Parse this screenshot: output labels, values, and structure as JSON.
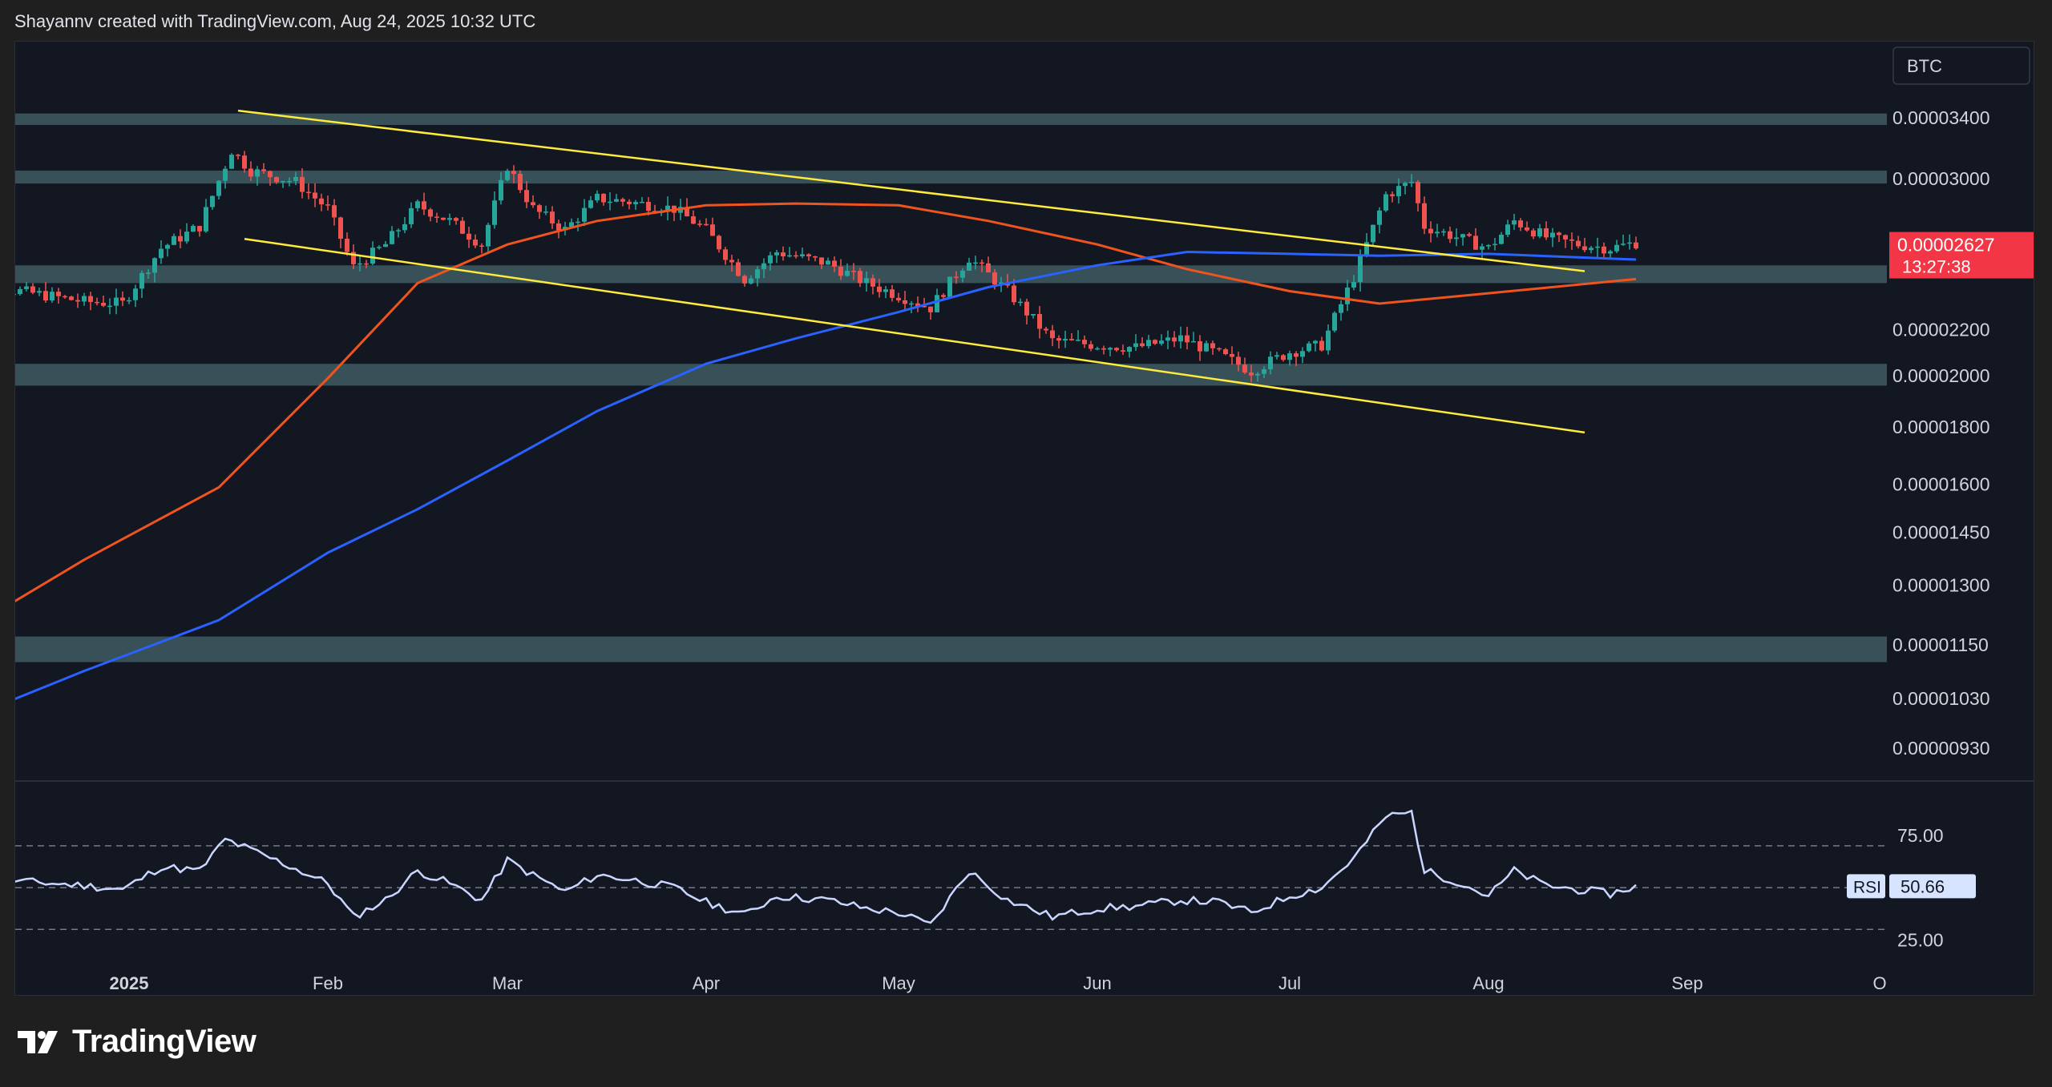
{
  "header": {
    "text": "Shayannv created with TradingView.com, Aug 24, 2025 10:32 UTC"
  },
  "footer": {
    "brand": "TradingView",
    "logo_icon": "tradingview-logo-icon"
  },
  "colors": {
    "background": "#131722",
    "page_bg": "#1f1f1f",
    "grid_zone": "#3f5a62",
    "candle_up": "#26a69a",
    "candle_down": "#ef5350",
    "ma_orange": "#f0541e",
    "ma_blue": "#2962ff",
    "trendline": "#ffeb3b",
    "rsi_line": "#c9d6ff",
    "price_badge": "#f23645",
    "rsi_badge": "#d6e4ff"
  },
  "chart_data": [
    {
      "type": "candlestick",
      "title": "",
      "symbol_button": "BTC",
      "scale": "log",
      "ylim": [
        8.9e-06,
        3.7e-05
      ],
      "x_tick_labels": [
        "2025",
        "Feb",
        "Mar",
        "Apr",
        "May",
        "Jun",
        "Jul",
        "Aug",
        "Sep",
        "O"
      ],
      "x_tick_dates": [
        "2025-01-01",
        "2025-02-01",
        "2025-03-01",
        "2025-04-01",
        "2025-05-01",
        "2025-06-01",
        "2025-07-01",
        "2025-08-01",
        "2025-09-01",
        "2025-10-01"
      ],
      "y_tick_labels": [
        "0.00003400",
        "0.00003000",
        "0.00002200",
        "0.00002000",
        "0.00001800",
        "0.00001600",
        "0.00001450",
        "0.00001300",
        "0.00001150",
        "0.00001030",
        "0.00000930"
      ],
      "y_tick_values": [
        3.4e-05,
        3e-05,
        2.2e-05,
        2e-05,
        1.8e-05,
        1.6e-05,
        1.45e-05,
        1.3e-05,
        1.15e-05,
        1.03e-05,
        9.3e-06
      ],
      "current_price": {
        "value": "0.00002627",
        "countdown": "13:27:38"
      },
      "zones": [
        {
          "from": 3.35e-05,
          "to": 3.43e-05
        },
        {
          "from": 2.97e-05,
          "to": 3.05e-05
        },
        {
          "from": 2.42e-05,
          "to": 2.51e-05
        },
        {
          "from": 1.96e-05,
          "to": 2.05e-05
        },
        {
          "from": 1.11e-05,
          "to": 1.17e-05
        }
      ],
      "trendlines": [
        {
          "from": [
            "2025-01-18",
            3.45e-05
          ],
          "to": [
            "2025-08-16",
            2.48e-05
          ]
        },
        {
          "from": [
            "2025-01-19",
            2.65e-05
          ],
          "to": [
            "2025-08-16",
            1.78e-05
          ]
        }
      ],
      "moving_averages": [
        {
          "color": "#f0541e",
          "points": [
            [
              "2024-12-05",
              1.17e-05
            ],
            [
              "2024-12-25",
              1.37e-05
            ],
            [
              "2025-01-15",
              1.59e-05
            ],
            [
              "2025-02-01",
              1.99e-05
            ],
            [
              "2025-02-15",
              2.42e-05
            ],
            [
              "2025-03-01",
              2.62e-05
            ],
            [
              "2025-03-15",
              2.75e-05
            ],
            [
              "2025-04-01",
              2.84e-05
            ],
            [
              "2025-04-15",
              2.85e-05
            ],
            [
              "2025-05-01",
              2.84e-05
            ],
            [
              "2025-05-15",
              2.75e-05
            ],
            [
              "2025-06-01",
              2.62e-05
            ],
            [
              "2025-06-15",
              2.49e-05
            ],
            [
              "2025-07-01",
              2.38e-05
            ],
            [
              "2025-07-15",
              2.32e-05
            ],
            [
              "2025-08-01",
              2.37e-05
            ],
            [
              "2025-08-24",
              2.44e-05
            ]
          ]
        },
        {
          "color": "#2962ff",
          "points": [
            [
              "2024-12-05",
              9.8e-06
            ],
            [
              "2024-12-25",
              1.09e-05
            ],
            [
              "2025-01-15",
              1.21e-05
            ],
            [
              "2025-02-01",
              1.39e-05
            ],
            [
              "2025-02-15",
              1.52e-05
            ],
            [
              "2025-03-01",
              1.68e-05
            ],
            [
              "2025-03-15",
              1.86e-05
            ],
            [
              "2025-04-01",
              2.05e-05
            ],
            [
              "2025-04-15",
              2.16e-05
            ],
            [
              "2025-05-01",
              2.28e-05
            ],
            [
              "2025-05-15",
              2.4e-05
            ],
            [
              "2025-06-01",
              2.51e-05
            ],
            [
              "2025-06-15",
              2.58e-05
            ],
            [
              "2025-07-01",
              2.57e-05
            ],
            [
              "2025-07-15",
              2.56e-05
            ],
            [
              "2025-08-01",
              2.57e-05
            ],
            [
              "2025-08-24",
              2.54e-05
            ]
          ]
        }
      ],
      "close_path": [
        [
          "2024-12-05",
          2.43e-05
        ],
        [
          "2024-12-15",
          2.38e-05
        ],
        [
          "2024-12-25",
          2.33e-05
        ],
        [
          "2024-12-31",
          2.32e-05
        ],
        [
          "2025-01-06",
          2.6e-05
        ],
        [
          "2025-01-12",
          2.72e-05
        ],
        [
          "2025-01-17",
          3.18e-05
        ],
        [
          "2025-01-20",
          3.05e-05
        ],
        [
          "2025-01-27",
          2.98e-05
        ],
        [
          "2025-02-01",
          2.82e-05
        ],
        [
          "2025-02-05",
          2.5e-05
        ],
        [
          "2025-02-10",
          2.62e-05
        ],
        [
          "2025-02-15",
          2.84e-05
        ],
        [
          "2025-02-20",
          2.75e-05
        ],
        [
          "2025-02-25",
          2.62e-05
        ],
        [
          "2025-03-01",
          3.08e-05
        ],
        [
          "2025-03-05",
          2.82e-05
        ],
        [
          "2025-03-10",
          2.7e-05
        ],
        [
          "2025-03-15",
          2.88e-05
        ],
        [
          "2025-03-20",
          2.86e-05
        ],
        [
          "2025-03-27",
          2.82e-05
        ],
        [
          "2025-04-01",
          2.7e-05
        ],
        [
          "2025-04-07",
          2.44e-05
        ],
        [
          "2025-04-12",
          2.58e-05
        ],
        [
          "2025-04-20",
          2.52e-05
        ],
        [
          "2025-04-26",
          2.42e-05
        ],
        [
          "2025-05-01",
          2.36e-05
        ],
        [
          "2025-05-06",
          2.3e-05
        ],
        [
          "2025-05-12",
          2.55e-05
        ],
        [
          "2025-05-18",
          2.38e-05
        ],
        [
          "2025-05-25",
          2.15e-05
        ],
        [
          "2025-06-01",
          2.13e-05
        ],
        [
          "2025-06-07",
          2.12e-05
        ],
        [
          "2025-06-14",
          2.16e-05
        ],
        [
          "2025-06-20",
          2.09e-05
        ],
        [
          "2025-06-25",
          2.02e-05
        ],
        [
          "2025-07-01",
          2.1e-05
        ],
        [
          "2025-07-06",
          2.13e-05
        ],
        [
          "2025-07-11",
          2.45e-05
        ],
        [
          "2025-07-16",
          2.9e-05
        ],
        [
          "2025-07-20",
          2.98e-05
        ],
        [
          "2025-07-22",
          2.72e-05
        ],
        [
          "2025-07-27",
          2.66e-05
        ],
        [
          "2025-08-01",
          2.6e-05
        ],
        [
          "2025-08-05",
          2.75e-05
        ],
        [
          "2025-08-10",
          2.66e-05
        ],
        [
          "2025-08-15",
          2.62e-05
        ],
        [
          "2025-08-20",
          2.6e-05
        ],
        [
          "2025-08-24",
          2.63e-05
        ]
      ]
    },
    {
      "type": "line",
      "title": "RSI",
      "series_name": "RSI",
      "current_value": "50.66",
      "ylim": [
        14,
        101
      ],
      "y_tick_labels": [
        "75.00",
        "25.00"
      ],
      "levels": [
        70,
        50,
        30
      ],
      "points": [
        [
          "2024-12-05",
          56
        ],
        [
          "2024-12-15",
          53
        ],
        [
          "2024-12-25",
          51
        ],
        [
          "2024-12-31",
          49
        ],
        [
          "2025-01-06",
          60
        ],
        [
          "2025-01-12",
          58
        ],
        [
          "2025-01-16",
          73
        ],
        [
          "2025-01-20",
          68
        ],
        [
          "2025-01-27",
          59
        ],
        [
          "2025-02-01",
          52
        ],
        [
          "2025-02-05",
          36
        ],
        [
          "2025-02-10",
          44
        ],
        [
          "2025-02-15",
          58
        ],
        [
          "2025-02-20",
          52
        ],
        [
          "2025-02-25",
          44
        ],
        [
          "2025-03-01",
          63
        ],
        [
          "2025-03-05",
          56
        ],
        [
          "2025-03-10",
          48
        ],
        [
          "2025-03-15",
          56
        ],
        [
          "2025-03-20",
          54
        ],
        [
          "2025-03-27",
          50
        ],
        [
          "2025-04-01",
          43
        ],
        [
          "2025-04-07",
          37
        ],
        [
          "2025-04-12",
          46
        ],
        [
          "2025-04-20",
          44
        ],
        [
          "2025-04-26",
          40
        ],
        [
          "2025-05-01",
          38
        ],
        [
          "2025-05-06",
          32
        ],
        [
          "2025-05-12",
          58
        ],
        [
          "2025-05-18",
          44
        ],
        [
          "2025-05-25",
          36
        ],
        [
          "2025-06-01",
          40
        ],
        [
          "2025-06-07",
          41
        ],
        [
          "2025-06-14",
          44
        ],
        [
          "2025-06-20",
          43
        ],
        [
          "2025-06-25",
          38
        ],
        [
          "2025-07-01",
          46
        ],
        [
          "2025-07-06",
          50
        ],
        [
          "2025-07-11",
          64
        ],
        [
          "2025-07-16",
          84
        ],
        [
          "2025-07-20",
          86
        ],
        [
          "2025-07-22",
          58
        ],
        [
          "2025-07-27",
          53
        ],
        [
          "2025-08-01",
          46
        ],
        [
          "2025-08-05",
          58
        ],
        [
          "2025-08-10",
          51
        ],
        [
          "2025-08-15",
          49
        ],
        [
          "2025-08-20",
          47
        ],
        [
          "2025-08-24",
          50.66
        ]
      ]
    }
  ]
}
